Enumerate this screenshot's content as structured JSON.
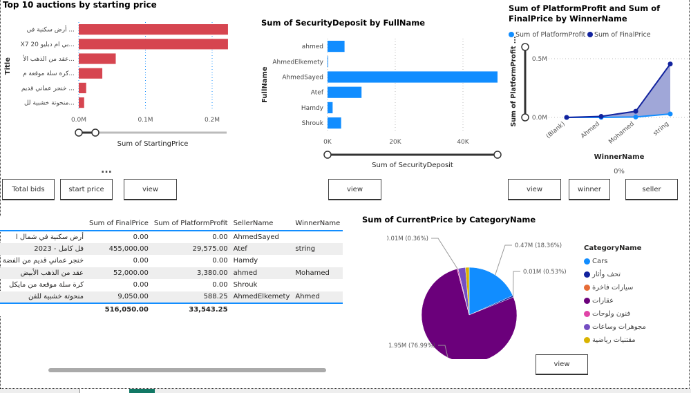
{
  "chart_data": [
    {
      "type": "bar",
      "title": "Top 10 auctions by starting price",
      "xlabel": "Sum of StartingPrice",
      "ylabel": "Title",
      "xlim": [
        0,
        0.22
      ],
      "ticks": [
        "0.0M",
        "0.1M",
        "0.2M"
      ],
      "categories": [
        "أرض سكنية في ...",
        "X7 20 بي ام دبليو...",
        "عقد من الذهب الأ...",
        "كرة سلة موقعة م...",
        "خنجر عماني قديم ...",
        "منحوتة خشبية لل..."
      ],
      "values": [
        0.222,
        0.222,
        0.055,
        0.035,
        0.011,
        0.008
      ],
      "unit": "M",
      "color": "#d64550"
    },
    {
      "type": "bar",
      "title": "Sum of SecurityDeposit by FullName",
      "xlabel": "Sum of SecurityDeposit",
      "ylabel": "FullName",
      "xlim": [
        0,
        50
      ],
      "ticks": [
        "0K",
        "20K",
        "40K"
      ],
      "categories": [
        "ahmed",
        "AhmedElkemety",
        "AhmedSayed",
        "Atef",
        "Hamdy",
        "Shrouk"
      ],
      "values": [
        5,
        0.2,
        50,
        10,
        1.5,
        4
      ],
      "unit": "K",
      "color": "#118dff"
    },
    {
      "type": "area",
      "title": "Sum of PlatformProfit and Sum of FinalPrice by WinnerName",
      "xlabel": "WinnerName",
      "ylabel": "Sum of PlatformProfit ...",
      "ylim": [
        0,
        500000
      ],
      "ticks": [
        "0.0M",
        "0.5M"
      ],
      "categories": [
        "(Blank)",
        "Ahmed",
        "Mohamed",
        "string"
      ],
      "series": [
        {
          "name": "Sum of PlatformProfit",
          "values": [
            0,
            588.25,
            3380,
            29575
          ],
          "color": "#118dff"
        },
        {
          "name": "Sum of FinalPrice",
          "values": [
            0,
            9050,
            52000,
            455000
          ],
          "color": "#12239e"
        }
      ],
      "legend": "top",
      "scroll_label": "0%"
    },
    {
      "type": "pie",
      "title": "Sum of CurrentPrice by CategoryName",
      "legend_title": "CategoryName",
      "legend": "right",
      "categories": [
        "Cars",
        "تحف وأثار",
        "سيارات فاخرة",
        "عقارات",
        "فنون ولوحات",
        "مجوهرات وساعات",
        "مقتنيات رياضية"
      ],
      "values": [
        18.36,
        0.53,
        0.0,
        76.99,
        0.36,
        2.5,
        1.26
      ],
      "colors": [
        "#118dff",
        "#12239e",
        "#e66c37",
        "#6b007b",
        "#e044a7",
        "#744ec2",
        "#d9b300"
      ],
      "data_labels": [
        {
          "text": "0.47M (18.36%)",
          "index": 0
        },
        {
          "text": "0.01M (0.53%)",
          "index": 1
        },
        {
          "text": "1.95M (76.99%)",
          "index": 3
        },
        {
          "text": "0.01M (0.36%)",
          "index": 4
        }
      ]
    }
  ],
  "buttons": {
    "total_bids": "Total bids",
    "start_price": "start price",
    "view": "view",
    "winner": "winner",
    "seller": "seller"
  },
  "more": "...",
  "table": {
    "headers": [
      "",
      "Sum of FinalPrice",
      "Sum of PlatformProfit",
      "SellerName",
      "WinnerName"
    ],
    "rows": [
      [
        "أرض سكنية في شمال ا",
        "0.00",
        "0.00",
        "AhmedSayed",
        ""
      ],
      [
        "فل كامل - 2023",
        "455,000.00",
        "29,575.00",
        "Atef",
        "string"
      ],
      [
        "خنجر عماني قديم من الفضة",
        "0.00",
        "0.00",
        "Hamdy",
        ""
      ],
      [
        "عقد من الذهب الأبيض",
        "52,000.00",
        "3,380.00",
        "ahmed",
        "Mohamed"
      ],
      [
        "كرة سلة موقعة من مايكل",
        "0.00",
        "0.00",
        "Shrouk",
        ""
      ],
      [
        "منحوتة خشبية للفن",
        "9,050.00",
        "588.25",
        "AhmedElkemety",
        "Ahmed"
      ]
    ],
    "totals": [
      "",
      "516,050.00",
      "33,543.25",
      "",
      ""
    ]
  }
}
